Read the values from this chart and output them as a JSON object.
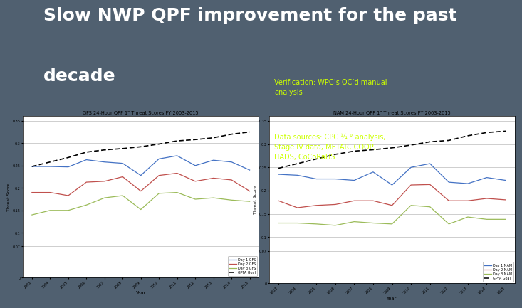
{
  "title_line1": "Slow NWP QPF improvement for the past",
  "title_line2": "decade",
  "bg_color": "#506070",
  "title_color": "white",
  "verification_text": "Verification: WPC’s QC’d manual\nanalysis",
  "data_sources_text": "Data sources: CPC ¼ ° analysis,\nStage IV data, METAR, COOP,\nHADS, CoCoRaHS",
  "annotation_color": "#ccff00",
  "years": [
    2003,
    2004,
    2005,
    2006,
    2007,
    2008,
    2009,
    2010,
    2011,
    2012,
    2013,
    2014,
    2015
  ],
  "gfs_title": "GFS 24-Hour QPF 1\" Threat Scores FY 2003-2015",
  "gfs_day1": [
    0.248,
    0.248,
    0.247,
    0.263,
    0.258,
    0.255,
    0.228,
    0.265,
    0.272,
    0.25,
    0.262,
    0.258,
    0.24
  ],
  "gfs_day2": [
    0.19,
    0.19,
    0.183,
    0.213,
    0.215,
    0.225,
    0.193,
    0.228,
    0.233,
    0.215,
    0.222,
    0.218,
    0.193
  ],
  "gfs_day3": [
    0.14,
    0.15,
    0.15,
    0.162,
    0.178,
    0.183,
    0.152,
    0.188,
    0.19,
    0.175,
    0.178,
    0.173,
    0.17
  ],
  "gfs_goal": [
    0.248,
    0.258,
    0.268,
    0.28,
    0.285,
    0.288,
    0.292,
    0.298,
    0.305,
    0.308,
    0.312,
    0.32,
    0.325
  ],
  "nam_title": "NAM 24-Hour QPF 1\" Threat Scores FY 2003-2015",
  "nam_day1": [
    0.235,
    0.233,
    0.225,
    0.225,
    0.222,
    0.24,
    0.212,
    0.25,
    0.258,
    0.218,
    0.215,
    0.228,
    0.222
  ],
  "nam_day2": [
    0.178,
    0.163,
    0.168,
    0.17,
    0.178,
    0.178,
    0.168,
    0.212,
    0.213,
    0.178,
    0.178,
    0.183,
    0.18
  ],
  "nam_day3": [
    0.13,
    0.13,
    0.128,
    0.125,
    0.133,
    0.13,
    0.128,
    0.168,
    0.165,
    0.128,
    0.143,
    0.138,
    0.138
  ],
  "nam_goal": [
    0.248,
    0.258,
    0.268,
    0.278,
    0.285,
    0.288,
    0.292,
    0.298,
    0.305,
    0.308,
    0.318,
    0.325,
    0.328
  ],
  "color_day1": "#4472C4",
  "color_day2": "#C0504D",
  "color_day3": "#9BBB59",
  "color_goal": "#000000",
  "chart_bg": "#ffffff",
  "yticks": [
    0,
    0.07,
    0.1,
    0.15,
    0.2,
    0.25,
    0.3,
    0.35
  ]
}
